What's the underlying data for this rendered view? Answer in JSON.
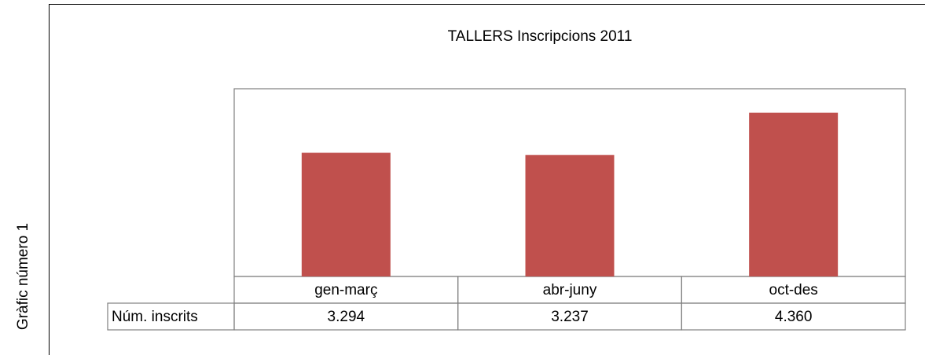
{
  "chart_data": {
    "type": "bar",
    "title": "TALLERS Inscripcions 2011",
    "caption": "Gràfic número 1",
    "categories": [
      "gen-març",
      "abr-juny",
      "oct-des"
    ],
    "series": [
      {
        "name": "Núm. inscrits",
        "color": "#c0504d",
        "values": [
          3294,
          3237,
          4360
        ],
        "value_labels": [
          "3.294",
          "3.237",
          "4.360"
        ]
      }
    ],
    "ylim": [
      0,
      5000
    ],
    "grid": false
  }
}
